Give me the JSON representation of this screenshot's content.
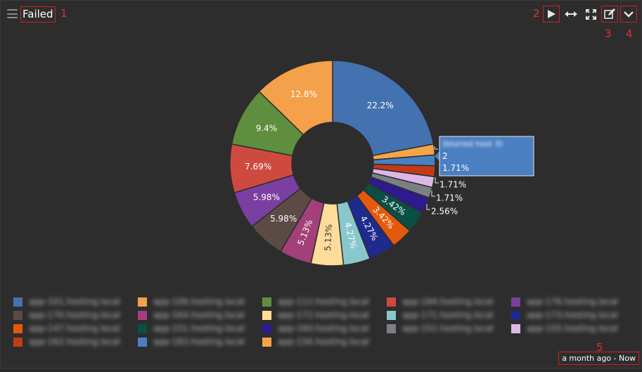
{
  "panel": {
    "title": "Failed",
    "time_range": "a month ago - Now"
  },
  "annotations": [
    "1",
    "2",
    "3",
    "4",
    "5"
  ],
  "toolbar": {
    "play_icon": "play-icon",
    "resize_icon": "horizontal-resize-icon",
    "fullscreen_icon": "fullscreen-icon",
    "edit_icon": "edit-icon",
    "collapse_icon": "chevron-down-icon"
  },
  "colors": {
    "background": "#2d2d2d",
    "annotation": "#e03030"
  },
  "chart_data": {
    "type": "pie",
    "title": "Failed",
    "slices": [
      {
        "name": "(blurred host 1)",
        "value": 22.2,
        "label": "22.2%",
        "color": "#4472b0"
      },
      {
        "name": "(blurred host 2)",
        "value": 1.71,
        "label": "",
        "color": "#f4a54a"
      },
      {
        "name": "(blurred host 3)",
        "value": 1.71,
        "label": "",
        "color": "#4a7fc2"
      },
      {
        "name": "(blurred host 4)",
        "value": 1.71,
        "label": "",
        "color": "#c23a1a"
      },
      {
        "name": "(blurred host 5)",
        "value": 1.71,
        "label": "1.71%",
        "color": "#dcb8e6"
      },
      {
        "name": "(blurred host 6)",
        "value": 1.71,
        "label": "1.71%",
        "color": "#7b8085"
      },
      {
        "name": "(blurred host 7)",
        "value": 2.56,
        "label": "2.56%",
        "color": "#2e1a8c"
      },
      {
        "name": "(blurred host 8)",
        "value": 3.42,
        "label": "3.42%",
        "color": "#0a4f44"
      },
      {
        "name": "(blurred host 9)",
        "value": 3.42,
        "label": "3.42%",
        "color": "#e35a0c"
      },
      {
        "name": "(blurred host 10)",
        "value": 4.27,
        "label": "4.27%",
        "color": "#1e2a8c"
      },
      {
        "name": "(blurred host 11)",
        "value": 4.27,
        "label": "4.27%",
        "color": "#88c8cc"
      },
      {
        "name": "(blurred host 12)",
        "value": 5.13,
        "label": "5.13%",
        "color": "#ffdc9a"
      },
      {
        "name": "(blurred host 13)",
        "value": 5.13,
        "label": "5.13%",
        "color": "#a3407a"
      },
      {
        "name": "(blurred host 14)",
        "value": 5.98,
        "label": "5.98%",
        "color": "#5c4a44"
      },
      {
        "name": "(blurred host 15)",
        "value": 5.98,
        "label": "5.98%",
        "color": "#7a3fa0"
      },
      {
        "name": "(blurred host 16)",
        "value": 7.69,
        "label": "7.69%",
        "color": "#cf4a3e"
      },
      {
        "name": "(blurred host 17)",
        "value": 9.4,
        "label": "9.4%",
        "color": "#5f8f3e"
      },
      {
        "name": "(blurred host 18)",
        "value": 12.8,
        "label": "12.8%",
        "color": "#f5a04a"
      }
    ],
    "tooltip": {
      "name": "(blurred host 3)",
      "count": "2",
      "percent": "1.71%"
    },
    "legend": [
      {
        "text": "app-101.hosting.local",
        "color": "#4472b0"
      },
      {
        "text": "app-106.hosting.local",
        "color": "#f5a04a"
      },
      {
        "text": "app-112.hosting.local",
        "color": "#5f8f3e"
      },
      {
        "text": "app-184.hosting.local",
        "color": "#cf4a3e"
      },
      {
        "text": "app-176.hosting.local",
        "color": "#7a3fa0"
      },
      {
        "text": "app-170.hosting.local",
        "color": "#5c4a44"
      },
      {
        "text": "app-164.hosting.local",
        "color": "#a3407a"
      },
      {
        "text": "app-172.hosting.local",
        "color": "#ffdc9a"
      },
      {
        "text": "app-171.hosting.local",
        "color": "#88c8cc"
      },
      {
        "text": "app-173.hosting.local",
        "color": "#1e2a8c"
      },
      {
        "text": "app-147.hosting.local",
        "color": "#e35a0c"
      },
      {
        "text": "app-151.hosting.local",
        "color": "#0a4f44"
      },
      {
        "text": "app-160.hosting.local",
        "color": "#2e1a8c"
      },
      {
        "text": "app-152.hosting.local",
        "color": "#7b8085"
      },
      {
        "text": "app-155.hosting.local",
        "color": "#dcb8e6"
      },
      {
        "text": "app-162.hosting.local",
        "color": "#c23a1a"
      },
      {
        "text": "app-183.hosting.local",
        "color": "#4a7fc2"
      },
      {
        "text": "app-156.hosting.local",
        "color": "#f4a54a"
      }
    ]
  }
}
